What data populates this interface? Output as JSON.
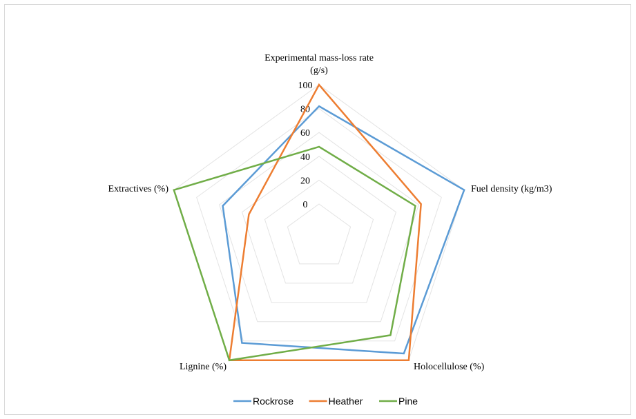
{
  "chart_data": {
    "type": "radar",
    "axes": [
      [
        "Experimental mass-loss rate",
        "(g/s)"
      ],
      [
        "Fuel density (kg/m3)"
      ],
      [
        "Holocellulose (%)"
      ],
      [
        "Lignine (%)"
      ],
      [
        "Extractives (%)"
      ]
    ],
    "ticks": [
      "0",
      "20",
      "40",
      "60",
      "80",
      "100"
    ],
    "rlim": [
      0,
      100
    ],
    "series": [
      {
        "name": "Rockrose",
        "color": "#5b9bd5",
        "values": [
          82,
          100,
          93,
          82,
          57
        ]
      },
      {
        "name": "Heather",
        "color": "#ed7d31",
        "values": [
          100,
          62,
          100,
          100,
          34
        ]
      },
      {
        "name": "Pine",
        "color": "#70ad47",
        "values": [
          48,
          57,
          74,
          100,
          100
        ]
      }
    ],
    "grid": true,
    "legend": "bottom-center"
  }
}
